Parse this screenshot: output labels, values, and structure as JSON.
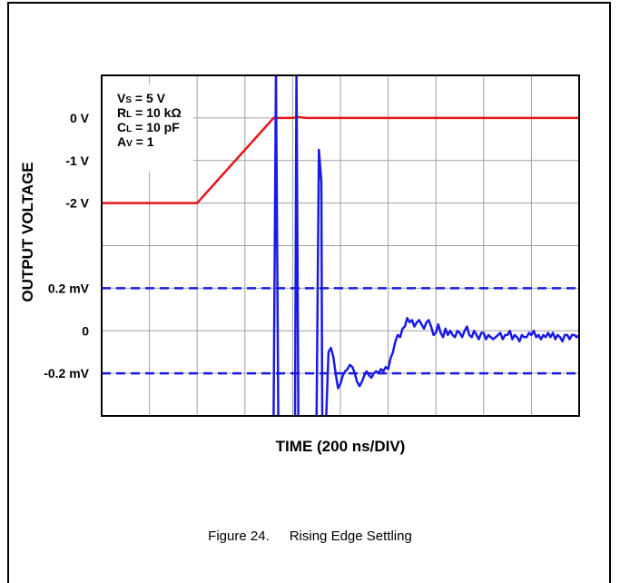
{
  "chart_data": {
    "type": "line",
    "xlabel": "TIME (200 ns/DIV)",
    "ylabel": "OUTPUT VOLTAGE",
    "x_divisions": 10,
    "x": [
      0,
      2,
      3.6,
      4,
      4.1,
      4.3,
      10
    ],
    "grid": true,
    "upper_panel": {
      "y_tick_labels": [
        "0 V",
        "-1 V",
        "-2 V"
      ],
      "series": [
        {
          "color": "#e8141c",
          "x": [
            0,
            2,
            3.6,
            4,
            4.1,
            4.3,
            10
          ],
          "values": [
            -2,
            -2,
            0,
            0,
            0.02,
            0,
            0
          ]
        }
      ]
    },
    "lower_panel": {
      "y_tick_labels": [
        "0.2 mV",
        "0",
        "-0.2 mV"
      ],
      "reference_lines": [
        0.2,
        -0.2
      ],
      "series": [
        {
          "color": "#1a1ae6",
          "x": [
            3.6,
            3.65,
            3.7,
            4.05,
            4.08,
            4.12,
            4.5,
            4.55,
            4.6,
            4.62,
            4.7,
            4.75,
            4.8,
            4.85,
            4.9,
            4.95,
            5.0,
            5.05,
            5.1,
            5.15,
            5.2,
            5.25,
            5.3,
            5.35,
            5.4,
            5.45,
            5.5,
            5.55,
            5.6,
            5.65,
            5.7,
            5.75,
            5.8,
            5.85,
            5.9,
            5.95,
            6.0,
            6.05,
            6.1,
            6.15,
            6.2,
            6.25,
            6.3,
            6.35,
            6.4,
            6.45,
            6.5,
            6.55,
            6.6,
            6.65,
            6.7,
            6.75,
            6.8,
            6.85,
            6.9,
            6.95,
            7.0,
            7.05,
            7.1,
            7.15,
            7.2,
            7.25,
            7.3,
            7.35,
            7.4,
            7.45,
            7.5,
            7.55,
            7.6,
            7.65,
            7.7,
            7.75,
            7.8,
            7.85,
            7.9,
            7.95,
            8.0,
            8.05,
            8.1,
            8.15,
            8.2,
            8.25,
            8.3,
            8.35,
            8.4,
            8.45,
            8.5,
            8.55,
            8.6,
            8.65,
            8.7,
            8.75,
            8.8,
            8.85,
            8.9,
            8.95,
            9.0,
            9.05,
            9.1,
            9.15,
            9.2,
            9.25,
            9.3,
            9.35,
            9.4,
            9.45,
            9.5,
            9.55,
            9.6,
            9.65,
            9.7,
            9.75,
            9.8,
            9.85,
            9.9,
            9.95,
            10.0
          ],
          "values": [
            -0.4,
            2.0,
            -0.4,
            -0.4,
            2.0,
            -0.4,
            -0.4,
            0.85,
            0.7,
            -0.4,
            -0.4,
            -0.1,
            -0.08,
            -0.12,
            -0.2,
            -0.27,
            -0.25,
            -0.21,
            -0.19,
            -0.18,
            -0.16,
            -0.17,
            -0.2,
            -0.24,
            -0.26,
            -0.24,
            -0.21,
            -0.19,
            -0.21,
            -0.22,
            -0.2,
            -0.19,
            -0.2,
            -0.18,
            -0.19,
            -0.17,
            -0.18,
            -0.13,
            -0.1,
            -0.05,
            -0.02,
            -0.03,
            0.01,
            0.02,
            0.06,
            0.04,
            0.05,
            0.02,
            0.04,
            0.05,
            0.03,
            0.01,
            0.04,
            0.05,
            0.02,
            -0.02,
            -0.01,
            0.03,
            -0.01,
            -0.03,
            0.01,
            -0.02,
            0.0,
            -0.02,
            -0.03,
            0.0,
            -0.01,
            -0.03,
            0.0,
            0.02,
            -0.02,
            -0.03,
            0.0,
            -0.02,
            -0.04,
            -0.01,
            -0.01,
            -0.04,
            -0.02,
            -0.03,
            -0.04,
            -0.03,
            -0.02,
            -0.01,
            -0.04,
            -0.02,
            -0.02,
            0.0,
            -0.04,
            -0.02,
            -0.03,
            -0.05,
            -0.02,
            -0.03,
            -0.03,
            -0.01,
            -0.02,
            0.0,
            -0.03,
            -0.02,
            -0.04,
            -0.02,
            -0.03,
            -0.01,
            -0.03,
            -0.01,
            -0.04,
            -0.02,
            -0.03,
            -0.05,
            -0.02,
            -0.02,
            -0.04,
            -0.02,
            -0.02,
            -0.03,
            -0.02
          ]
        }
      ]
    }
  },
  "conditions": [
    {
      "main": "V",
      "sub": "S",
      "rest": " = 5 V"
    },
    {
      "main": "R",
      "sub": "L",
      "rest": " = 10 kΩ"
    },
    {
      "main": "C",
      "sub": "L",
      "rest": " = 10 pF"
    },
    {
      "main": "A",
      "sub": "V",
      "rest": " = 1"
    }
  ],
  "caption": {
    "number": "Figure 24.",
    "title": "Rising Edge Settling"
  },
  "colors": {
    "upper_trace": "#e8141c",
    "lower_trace": "#1a1ae6",
    "grid": "#a0a0a0"
  }
}
